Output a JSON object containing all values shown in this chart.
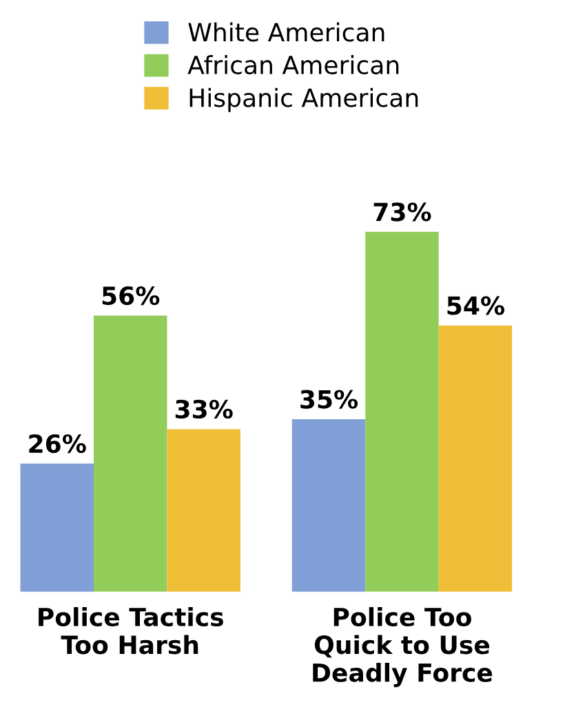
{
  "chart_data": {
    "type": "bar",
    "categories": [
      "Police Tactics\nToo Harsh",
      "Police Too\nQuick to Use\nDeadly Force"
    ],
    "series": [
      {
        "name": "White American",
        "color": "#7f9fd6",
        "values": [
          26,
          35
        ],
        "value_labels": [
          "26%",
          "35%"
        ]
      },
      {
        "name": "African American",
        "color": "#92cd5a",
        "values": [
          56,
          73
        ],
        "value_labels": [
          "56%",
          "73%"
        ]
      },
      {
        "name": "Hispanic American",
        "color": "#f0bd36",
        "values": [
          33,
          54
        ],
        "value_labels": [
          "33%",
          "54%"
        ]
      }
    ],
    "legend": "top"
  }
}
